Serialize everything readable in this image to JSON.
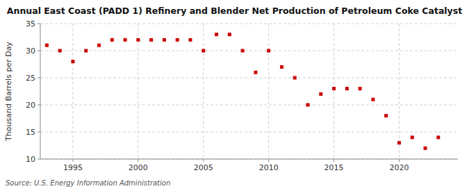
{
  "chart_data": {
    "type": "scatter",
    "title": "Annual East Coast (PADD 1) Refinery and Blender Net Production of Petroleum Coke Catalyst",
    "ylabel": "Thousand Barrels per Day",
    "annotation": "Source: U.S. Energy Information Administration",
    "color": "#cc0000",
    "marker": "square",
    "grid": true,
    "x": [
      1993,
      1994,
      1995,
      1996,
      1997,
      1998,
      1999,
      2000,
      2001,
      2002,
      2003,
      2004,
      2005,
      2006,
      2007,
      2008,
      2009,
      2010,
      2011,
      2012,
      2013,
      2014,
      2015,
      2016,
      2017,
      2018,
      2019,
      2020,
      2021,
      2022,
      2023
    ],
    "values": [
      31,
      30,
      28,
      30,
      31,
      32,
      32,
      32,
      32,
      32,
      32,
      32,
      30,
      33,
      33,
      30,
      26,
      30,
      27,
      25,
      20,
      22,
      23,
      23,
      23,
      21,
      18,
      13,
      14,
      12,
      14
    ],
    "xlim": [
      1992.5,
      2024.5
    ],
    "xticks": [
      1995,
      2000,
      2005,
      2010,
      2015,
      2020
    ],
    "ylim": [
      10,
      35
    ],
    "yticks": [
      10,
      15,
      20,
      25,
      30,
      35
    ]
  }
}
